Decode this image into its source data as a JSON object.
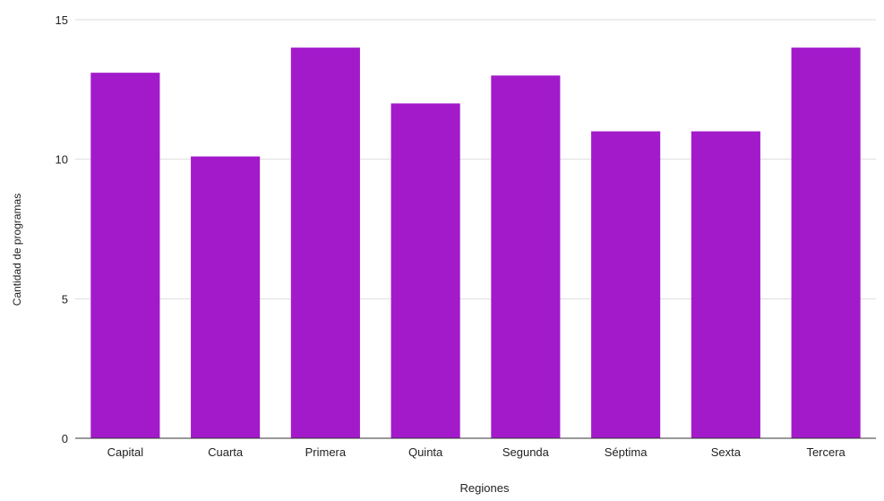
{
  "chart_data": {
    "type": "bar",
    "title": "",
    "xlabel": "Regiones",
    "ylabel": "Cantidad de programas",
    "categories": [
      "Capital",
      "Cuarta",
      "Primera",
      "Quinta",
      "Segunda",
      "Séptima",
      "Sexta",
      "Tercera"
    ],
    "values": [
      13.1,
      10.1,
      14,
      12,
      13,
      11,
      11,
      14
    ],
    "ylim": [
      0,
      15
    ],
    "yticks": [
      0,
      5,
      10,
      15
    ],
    "grid": true,
    "legend": "none",
    "bar_color": "#a31acb",
    "grid_color": "#dddddd",
    "axis_color": "#333333",
    "text_color": "#222222"
  }
}
